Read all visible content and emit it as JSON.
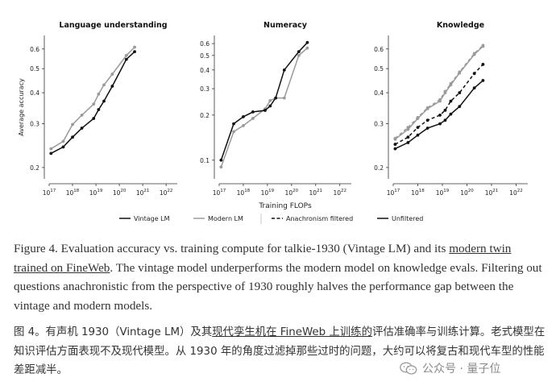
{
  "chart_data": [
    {
      "type": "line",
      "title": "Language understanding",
      "ylabel": "Average accuracy",
      "xlabel": "",
      "xscale": "log",
      "yscale": "log",
      "xlim": [
        1e+17,
        3e+22
      ],
      "ylim": [
        0.18,
        0.68
      ],
      "yticks": [
        0.2,
        0.3,
        0.4,
        0.5,
        0.6
      ],
      "ytick_labels": [
        "0.2",
        "0.3",
        "0.4",
        "0.5",
        "0.6"
      ],
      "grid": false,
      "series": [
        {
          "name": "Vintage LM",
          "color": "#111111",
          "dash": "solid",
          "x": [
            1.2e+17,
            4e+17,
            1e+18,
            2.5e+18,
            8e+18,
            1.3e+19,
            2.2e+19,
            5e+19,
            2e+20,
            4.5e+20
          ],
          "y": [
            0.228,
            0.242,
            0.265,
            0.288,
            0.315,
            0.342,
            0.37,
            0.425,
            0.545,
            0.585
          ]
        },
        {
          "name": "Modern LM",
          "color": "#9a9a9a",
          "dash": "solid",
          "x": [
            1.2e+17,
            4e+17,
            1e+18,
            2.5e+18,
            8e+18,
            1.3e+19,
            2.2e+19,
            5e+19,
            2e+20,
            4.5e+20
          ],
          "y": [
            0.238,
            0.255,
            0.298,
            0.325,
            0.36,
            0.395,
            0.43,
            0.475,
            0.565,
            0.61
          ]
        }
      ]
    },
    {
      "type": "line",
      "title": "Numeracy",
      "ylabel": "",
      "xlabel": "Training FLOPs",
      "xscale": "log",
      "yscale": "log",
      "xlim": [
        1e+17,
        3e+22
      ],
      "ylim": [
        0.075,
        0.68
      ],
      "yticks": [
        0.1,
        0.2,
        0.3,
        0.4,
        0.5,
        0.6
      ],
      "ytick_labels": [
        "0.1",
        "0.2",
        "0.3",
        "0.4",
        "0.5",
        "0.6"
      ],
      "grid": false,
      "series": [
        {
          "name": "Vintage LM",
          "color": "#111111",
          "dash": "solid",
          "x": [
            1.2e+17,
            4e+17,
            1e+18,
            2.5e+18,
            8e+18,
            1.3e+19,
            2.2e+19,
            5e+19,
            2e+20,
            4.5e+20
          ],
          "y": [
            0.1,
            0.175,
            0.195,
            0.21,
            0.215,
            0.23,
            0.26,
            0.4,
            0.53,
            0.61
          ]
        },
        {
          "name": "Modern LM",
          "color": "#9a9a9a",
          "dash": "solid",
          "x": [
            1.2e+17,
            4e+17,
            1e+18,
            2.5e+18,
            8e+18,
            1.3e+19,
            2.2e+19,
            5e+19,
            2e+20,
            4.5e+20
          ],
          "y": [
            0.09,
            0.155,
            0.17,
            0.19,
            0.22,
            0.25,
            0.26,
            0.26,
            0.5,
            0.56
          ]
        }
      ]
    },
    {
      "type": "line",
      "title": "Knowledge",
      "ylabel": "",
      "xlabel": "",
      "xscale": "log",
      "yscale": "log",
      "xlim": [
        1e+17,
        3e+22
      ],
      "ylim": [
        0.18,
        0.68
      ],
      "yticks": [
        0.2,
        0.3,
        0.4,
        0.5,
        0.6
      ],
      "ytick_labels": [
        "0.2",
        "0.3",
        "0.4",
        "0.5",
        "0.6"
      ],
      "grid": false,
      "series": [
        {
          "name": "Vintage LM (Unfiltered)",
          "color": "#111111",
          "dash": "solid",
          "x": [
            1.2e+17,
            4e+17,
            1e+18,
            2.5e+18,
            8e+18,
            1.3e+19,
            2.2e+19,
            5e+19,
            2e+20,
            4.5e+20
          ],
          "y": [
            0.238,
            0.252,
            0.27,
            0.288,
            0.3,
            0.31,
            0.328,
            0.352,
            0.418,
            0.448
          ]
        },
        {
          "name": "Vintage LM (Anachronism filtered)",
          "color": "#111111",
          "dash": "dashed",
          "x": [
            1.2e+17,
            4e+17,
            1e+18,
            2.5e+18,
            8e+18,
            1.3e+19,
            2.2e+19,
            5e+19,
            2e+20,
            4.5e+20
          ],
          "y": [
            0.248,
            0.265,
            0.29,
            0.31,
            0.325,
            0.34,
            0.37,
            0.4,
            0.478,
            0.52
          ]
        },
        {
          "name": "Modern LM (Unfiltered)",
          "color": "#9a9a9a",
          "dash": "solid",
          "x": [
            1.2e+17,
            4e+17,
            1e+18,
            2.5e+18,
            8e+18,
            1.3e+19,
            2.2e+19,
            5e+19,
            2e+20,
            4.5e+20
          ],
          "y": [
            0.26,
            0.285,
            0.315,
            0.345,
            0.37,
            0.4,
            0.43,
            0.48,
            0.57,
            0.615
          ]
        },
        {
          "name": "Modern LM (Anachronism filtered)",
          "color": "#9a9a9a",
          "dash": "dashed",
          "x": [
            1.2e+17,
            4e+17,
            1e+18,
            2.5e+18,
            8e+18,
            1.3e+19,
            2.2e+19,
            5e+19,
            2e+20,
            4.5e+20
          ],
          "y": [
            0.262,
            0.29,
            0.318,
            0.348,
            0.375,
            0.405,
            0.435,
            0.485,
            0.575,
            0.62
          ]
        }
      ]
    }
  ],
  "x_ticks": [
    {
      "base": "10",
      "exp": "17"
    },
    {
      "base": "10",
      "exp": "18"
    },
    {
      "base": "10",
      "exp": "19"
    },
    {
      "base": "10",
      "exp": "20"
    },
    {
      "base": "10",
      "exp": "21"
    },
    {
      "base": "10",
      "exp": "22"
    }
  ],
  "legend": {
    "placement": "bottom",
    "items": [
      {
        "label": "Vintage LM",
        "color": "#111111",
        "dash": "solid"
      },
      {
        "label": "Modern LM",
        "color": "#9a9a9a",
        "dash": "solid"
      },
      {
        "label": "Anachronism filtered",
        "color": "#111111",
        "dash": "dashed"
      },
      {
        "label": "Unfiltered",
        "color": "#111111",
        "dash": "solid"
      }
    ]
  },
  "caption_en": {
    "part1": "Figure 4. Evaluation accuracy vs. training compute for talkie-1930 (Vintage LM) and its ",
    "link": "modern twin trained on FineWeb",
    "part2": ". The vintage model underperforms the modern model on knowledge evals. Filtering out questions anachronistic from the perspective of 1930 roughly halves the performance gap between the vintage and modern models."
  },
  "caption_zh": {
    "part1": "图 4。有声机 1930（Vintage LM）及其",
    "link": "现代孪生机在 FineWeb 上训练的",
    "part2": "评估准确率与训练计算。老式模型在知识评估方面表现不及现代模型。从 1930 年的角度过滤掉那些过时的问题，大约可以将复古和现代车型的性能差距减半。"
  },
  "watermark": {
    "text": "公众号 · 量子位",
    "icon": "wechat-icon"
  }
}
